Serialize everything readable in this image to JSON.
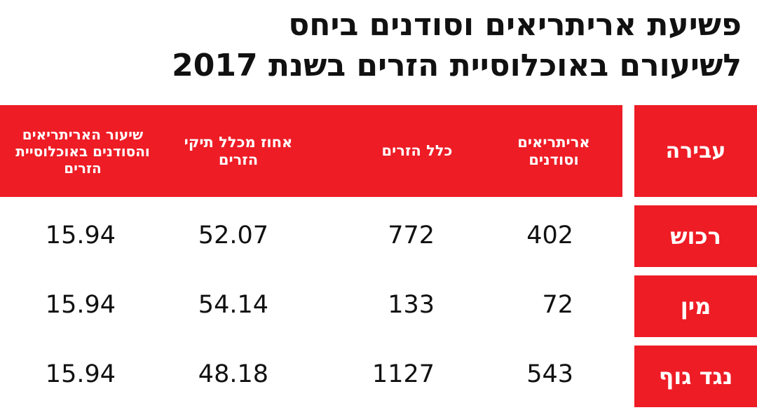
{
  "header": {
    "title_lines": [
      "פשיעת אריתריאים וסודנים ביחס",
      "לשיעורם באוכלוסיית הזרים בשנת 2017"
    ]
  },
  "table": {
    "columns": [
      "עבירה",
      "אריתריאים וסודנים",
      "כלל הזרים",
      "אחוז מכלל תיקי הזרים",
      "שיעור האריתריאים והסודנים באוכלוסיית הזרים"
    ],
    "rows": [
      [
        "רכוש",
        "402",
        "772",
        "52.07",
        "15.94"
      ],
      [
        "מין",
        "72",
        "133",
        "54.14",
        "15.94"
      ],
      [
        "נגד גוף",
        "543",
        "1127",
        "48.18",
        "15.94"
      ]
    ]
  }
}
